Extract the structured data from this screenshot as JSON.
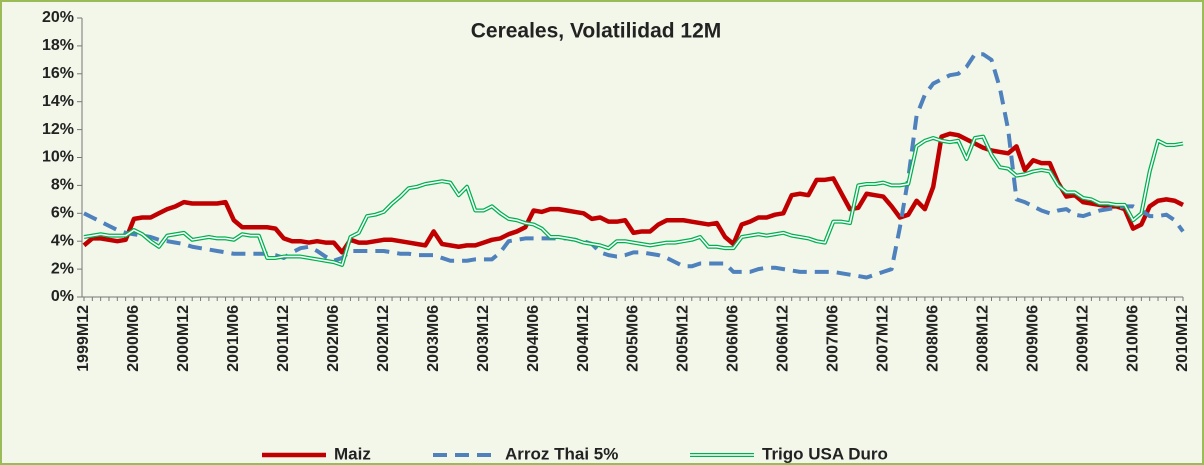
{
  "chart_data": {
    "type": "line",
    "title": "Cereales, Volatilidad 12M",
    "categories": [
      "1999M12",
      null,
      null,
      null,
      null,
      null,
      "2000M06",
      null,
      null,
      null,
      null,
      null,
      "2000M12",
      null,
      null,
      null,
      null,
      null,
      "2001M06",
      null,
      null,
      null,
      null,
      null,
      "2001M12",
      null,
      null,
      null,
      null,
      null,
      "2002M06",
      null,
      null,
      null,
      null,
      null,
      "2002M12",
      null,
      null,
      null,
      null,
      null,
      "2003M06",
      null,
      null,
      null,
      null,
      null,
      "2003M12",
      null,
      null,
      null,
      null,
      null,
      "2004M06",
      null,
      null,
      null,
      null,
      null,
      "2004M12",
      null,
      null,
      null,
      null,
      null,
      "2005M06",
      null,
      null,
      null,
      null,
      null,
      "2005M12",
      null,
      null,
      null,
      null,
      null,
      "2006M06",
      null,
      null,
      null,
      null,
      null,
      "2006M12",
      null,
      null,
      null,
      null,
      null,
      "2007M06",
      null,
      null,
      null,
      null,
      null,
      "2007M12",
      null,
      null,
      null,
      null,
      null,
      "2008M06",
      null,
      null,
      null,
      null,
      null,
      "2008M12",
      null,
      null,
      null,
      null,
      null,
      "2009M06",
      null,
      null,
      null,
      null,
      null,
      "2009M12",
      null,
      null,
      null,
      null,
      null,
      "2010M06",
      null,
      null,
      null,
      null,
      null,
      "2010M12"
    ],
    "series": [
      {
        "name": "Maiz",
        "color": "#c00000",
        "style": "solid",
        "values": [
          3.7,
          4.2,
          4.2,
          4.1,
          4.0,
          4.1,
          5.6,
          5.7,
          5.7,
          6.0,
          6.3,
          6.5,
          6.8,
          6.7,
          6.7,
          6.7,
          6.7,
          6.8,
          5.5,
          5.0,
          5.0,
          5.0,
          5.0,
          4.9,
          4.2,
          4.0,
          4.0,
          3.9,
          4.0,
          3.9,
          3.9,
          3.2,
          4.1,
          3.9,
          3.9,
          4.0,
          4.1,
          4.1,
          4.0,
          3.9,
          3.8,
          3.7,
          4.7,
          3.8,
          3.7,
          3.6,
          3.7,
          3.7,
          3.9,
          4.1,
          4.2,
          4.5,
          4.7,
          5.0,
          6.2,
          6.1,
          6.3,
          6.3,
          6.2,
          6.1,
          6.0,
          5.6,
          5.7,
          5.4,
          5.4,
          5.5,
          4.6,
          4.7,
          4.7,
          5.2,
          5.5,
          5.5,
          5.5,
          5.4,
          5.3,
          5.2,
          5.3,
          4.3,
          3.8,
          5.2,
          5.4,
          5.7,
          5.7,
          5.9,
          6.0,
          7.3,
          7.4,
          7.3,
          8.4,
          8.4,
          8.5,
          7.4,
          6.3,
          6.4,
          7.4,
          7.3,
          7.2,
          6.5,
          5.7,
          5.9,
          6.9,
          6.3,
          7.9,
          11.5,
          11.7,
          11.6,
          11.3,
          11.0,
          10.7,
          10.5,
          10.4,
          10.3,
          10.8,
          9.1,
          9.8,
          9.6,
          9.6,
          8.2,
          7.2,
          7.3,
          6.8,
          6.7,
          6.6,
          6.5,
          6.5,
          6.3,
          4.9,
          5.2,
          6.5,
          6.9,
          7.0,
          6.9,
          6.6
        ]
      },
      {
        "name": "Arroz Thai 5%",
        "color": "#4f81bd",
        "style": "dashed",
        "values": [
          6.0,
          5.7,
          5.4,
          5.1,
          4.8,
          4.6,
          4.5,
          4.4,
          4.3,
          4.1,
          4.0,
          3.9,
          3.8,
          3.6,
          3.5,
          3.4,
          3.3,
          3.2,
          3.1,
          3.1,
          3.1,
          3.1,
          3.1,
          3.0,
          2.8,
          3.2,
          3.5,
          3.6,
          3.3,
          2.9,
          2.6,
          2.8,
          3.3,
          3.3,
          3.3,
          3.3,
          3.3,
          3.2,
          3.1,
          3.1,
          3.0,
          3.0,
          3.0,
          2.8,
          2.6,
          2.6,
          2.6,
          2.7,
          2.7,
          2.7,
          3.2,
          4.0,
          4.1,
          4.2,
          4.2,
          4.2,
          4.2,
          4.2,
          4.2,
          4.1,
          4.0,
          3.8,
          3.2,
          3.0,
          2.9,
          3.0,
          3.2,
          3.2,
          3.1,
          3.0,
          2.8,
          2.5,
          2.2,
          2.2,
          2.4,
          2.4,
          2.4,
          2.4,
          1.8,
          1.8,
          1.8,
          2.0,
          2.1,
          2.1,
          2.0,
          1.9,
          1.8,
          1.8,
          1.8,
          1.8,
          1.8,
          1.7,
          1.6,
          1.5,
          1.4,
          1.6,
          1.8,
          2.0,
          5.0,
          8.5,
          13.0,
          14.5,
          15.3,
          15.6,
          15.9,
          16.0,
          16.5,
          17.4,
          17.4,
          17.0,
          15.0,
          12.0,
          7.0,
          6.8,
          6.5,
          6.2,
          6.0,
          6.2,
          6.3,
          5.9,
          5.8,
          6.0,
          6.2,
          6.3,
          6.4,
          6.5,
          6.5,
          6.2,
          5.8,
          5.8,
          5.9,
          5.5,
          4.7
        ]
      },
      {
        "name": "Trigo USA Duro",
        "color": "#00b050",
        "style": "double",
        "values": [
          4.3,
          4.4,
          4.5,
          4.4,
          4.4,
          4.4,
          4.8,
          4.5,
          4.0,
          3.6,
          4.4,
          4.5,
          4.6,
          4.1,
          4.2,
          4.3,
          4.2,
          4.2,
          4.1,
          4.5,
          4.4,
          4.4,
          2.8,
          2.8,
          2.9,
          2.9,
          2.9,
          2.8,
          2.7,
          2.6,
          2.5,
          2.3,
          4.3,
          4.6,
          5.8,
          5.9,
          6.1,
          6.7,
          7.2,
          7.8,
          7.9,
          8.1,
          8.2,
          8.3,
          8.2,
          7.3,
          7.9,
          6.2,
          6.2,
          6.5,
          6.0,
          5.6,
          5.5,
          5.3,
          5.2,
          4.9,
          4.3,
          4.3,
          4.2,
          4.1,
          3.9,
          3.8,
          3.7,
          3.5,
          4.0,
          4.0,
          3.9,
          3.8,
          3.7,
          3.8,
          3.9,
          3.9,
          4.0,
          4.1,
          4.3,
          3.6,
          3.6,
          3.5,
          3.5,
          4.3,
          4.4,
          4.5,
          4.4,
          4.5,
          4.6,
          4.4,
          4.3,
          4.2,
          4.0,
          3.9,
          5.4,
          5.4,
          5.3,
          8.0,
          8.1,
          8.1,
          8.2,
          8.0,
          8.0,
          8.1,
          10.8,
          11.2,
          11.4,
          11.2,
          11.1,
          11.2,
          9.9,
          11.4,
          11.5,
          10.2,
          9.3,
          9.2,
          8.7,
          8.8,
          9.0,
          9.1,
          9.0,
          8.0,
          7.5,
          7.5,
          7.1,
          7.0,
          6.7,
          6.7,
          6.6,
          6.6,
          5.5,
          6.0,
          9.0,
          11.2,
          10.9,
          10.9,
          11.0
        ]
      }
    ],
    "ylim": [
      0,
      20
    ],
    "yticks": [
      {
        "value": 0,
        "label": "0%"
      },
      {
        "value": 2,
        "label": "2%"
      },
      {
        "value": 4,
        "label": "4%"
      },
      {
        "value": 6,
        "label": "6%"
      },
      {
        "value": 8,
        "label": "8%"
      },
      {
        "value": 10,
        "label": "10%"
      },
      {
        "value": 12,
        "label": "12%"
      },
      {
        "value": 14,
        "label": "14%"
      },
      {
        "value": 16,
        "label": "16%"
      },
      {
        "value": 18,
        "label": "18%"
      },
      {
        "value": 20,
        "label": "20%"
      }
    ],
    "grid": false,
    "legend": "bottom"
  }
}
